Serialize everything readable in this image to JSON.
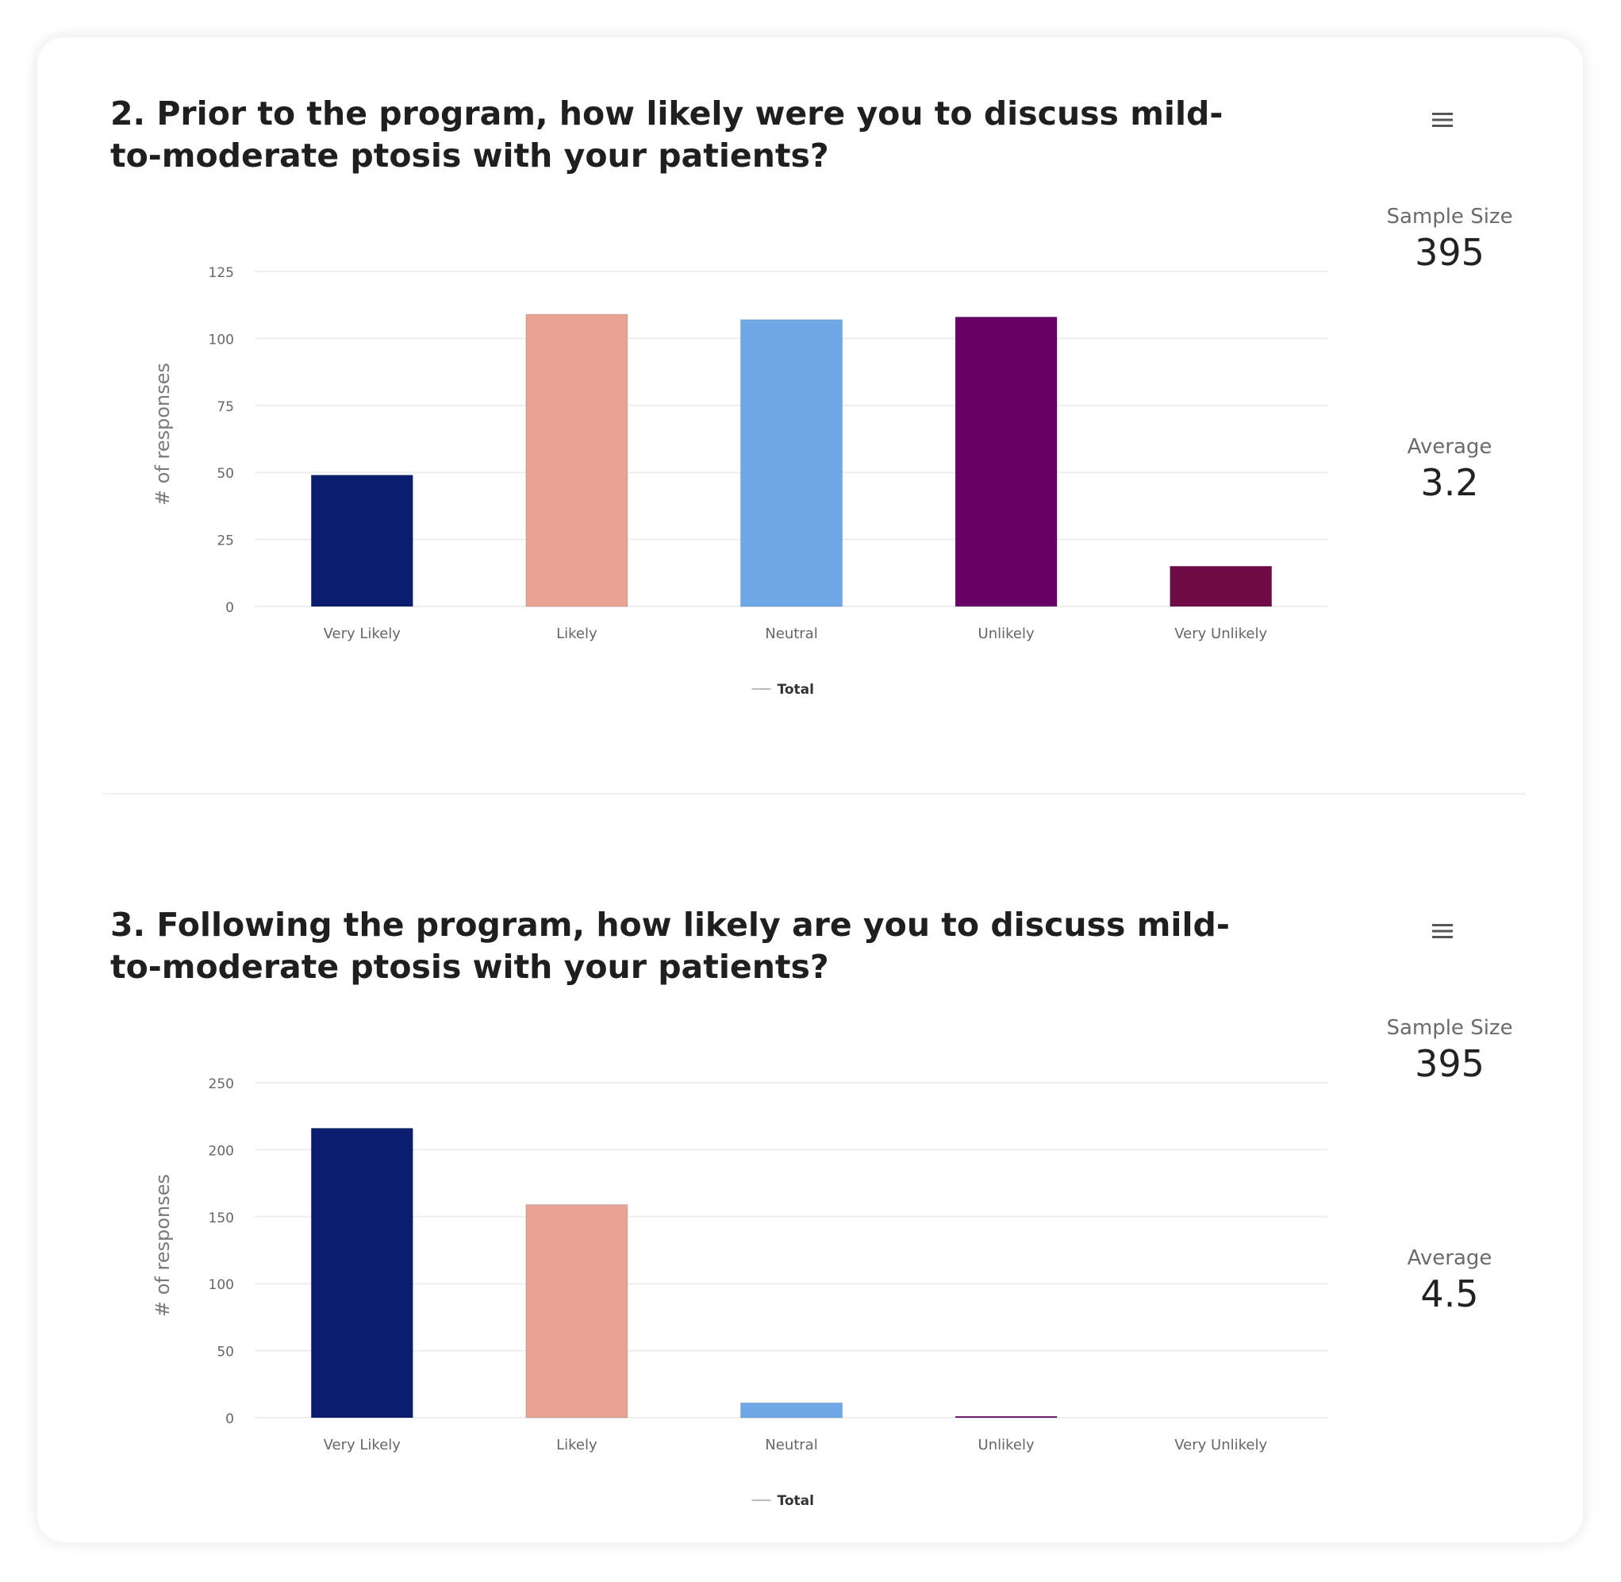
{
  "colors": {
    "Very Likely": "#0a1d6e",
    "Likely": "#e8a394",
    "Neutral": "#6ea8e6",
    "Unlikely": "#660066",
    "Very Unlikely": "#6e0a46",
    "grid": "#eceef1",
    "tick_text": "#666666",
    "title_text": "#1f1f1f"
  },
  "questions": [
    {
      "title": "2. Prior to the program, how likely were you to discuss mild-to-moderate ptosis with your patients?",
      "menu_icon": "hamburger-menu-icon",
      "sample_size_label": "Sample Size",
      "sample_size": "395",
      "average_label": "Average",
      "average": "3.2"
    },
    {
      "title": "3. Following the program, how likely are you to discuss mild-to-moderate ptosis with your patients?",
      "menu_icon": "hamburger-menu-icon",
      "sample_size_label": "Sample Size",
      "sample_size": "395",
      "average_label": "Average",
      "average": "4.5"
    }
  ],
  "chart_data": [
    {
      "type": "bar",
      "title": "2. Prior to the program, how likely were you to discuss mild-to-moderate ptosis with your patients?",
      "categories": [
        "Very Likely",
        "Likely",
        "Neutral",
        "Unlikely",
        "Very Unlikely"
      ],
      "series": [
        {
          "name": "Total",
          "values": [
            49,
            109,
            107,
            108,
            15
          ]
        }
      ],
      "xlabel": "",
      "ylabel": "# of responses",
      "ylim": [
        0,
        125
      ],
      "yticks": [
        0,
        25,
        50,
        75,
        100,
        125
      ],
      "grid": true,
      "legend": "bottom-center"
    },
    {
      "type": "bar",
      "title": "3. Following the program, how likely are you to discuss mild-to-moderate ptosis with your patients?",
      "categories": [
        "Very Likely",
        "Likely",
        "Neutral",
        "Unlikely",
        "Very Unlikely"
      ],
      "series": [
        {
          "name": "Total",
          "values": [
            216,
            159,
            11,
            1,
            0
          ]
        }
      ],
      "xlabel": "",
      "ylabel": "# of responses",
      "ylim": [
        0,
        250
      ],
      "yticks": [
        0,
        50,
        100,
        150,
        200,
        250
      ],
      "grid": true,
      "legend": "bottom-center"
    }
  ]
}
